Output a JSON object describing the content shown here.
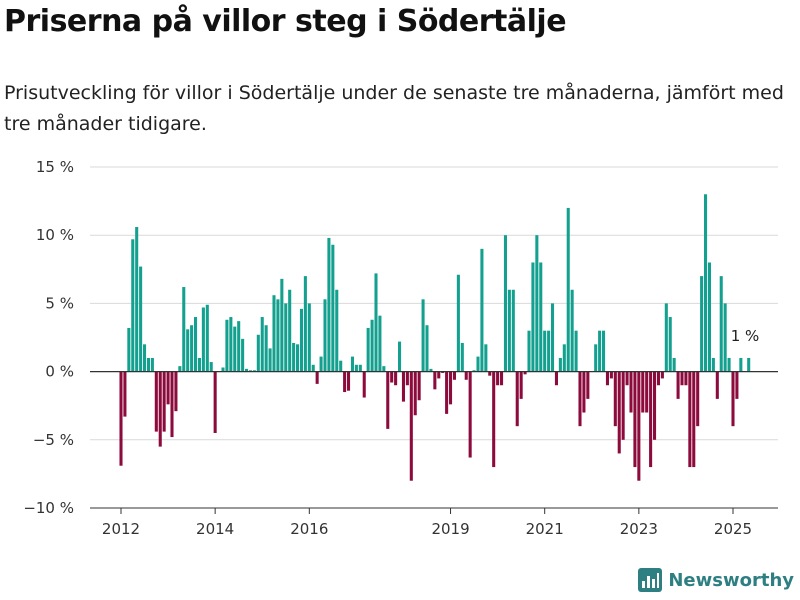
{
  "title": "Priserna på villor steg i Södertälje",
  "subtitle": "Prisutveckling för villor i Södertälje under de senaste tre månaderna, jämfört med tre månader tidigare.",
  "brand": {
    "name": "Newsworthy",
    "icon": "bar-chart-logo-icon"
  },
  "colors": {
    "positive": "#13a08f",
    "negative": "#8c0a3c",
    "grid": "#d9d9d9",
    "zero": "#333333",
    "brand": "#2e7f82"
  },
  "chart_data": {
    "type": "bar",
    "title": "Priserna på villor steg i Södertälje",
    "xlabel": "",
    "ylabel": "",
    "ylim": [
      -10,
      15
    ],
    "y_ticks": [
      {
        "value": -10,
        "label": "−10 %"
      },
      {
        "value": -5,
        "label": "−5 %"
      },
      {
        "value": 0,
        "label": "0 %"
      },
      {
        "value": 5,
        "label": "5 %"
      },
      {
        "value": 10,
        "label": "10 %"
      },
      {
        "value": 15,
        "label": "15 %"
      }
    ],
    "x_ticks": [
      {
        "value": 2012.0,
        "label": "2012"
      },
      {
        "value": 2014.0,
        "label": "2014"
      },
      {
        "value": 2016.0,
        "label": "2016"
      },
      {
        "value": 2019.0,
        "label": "2019"
      },
      {
        "value": 2021.0,
        "label": "2021"
      },
      {
        "value": 2023.0,
        "label": "2023"
      },
      {
        "value": 2025.0,
        "label": "2025"
      }
    ],
    "grid": true,
    "last_value_label": "1 %",
    "bar_interval": "monthly",
    "start_month": "2012-01",
    "values": [
      -6.9,
      -3.3,
      3.2,
      9.7,
      10.6,
      7.7,
      2.0,
      1.0,
      1.0,
      -4.4,
      -5.5,
      -4.4,
      -2.4,
      -4.8,
      -2.9,
      0.4,
      6.2,
      3.1,
      3.4,
      4.0,
      1.0,
      4.7,
      4.9,
      0.7,
      -4.5,
      0.0,
      0.3,
      3.8,
      4.0,
      3.3,
      3.7,
      2.4,
      0.2,
      0.1,
      0.1,
      2.7,
      4.0,
      3.4,
      1.7,
      5.6,
      5.3,
      6.8,
      5.0,
      6.0,
      2.1,
      2.0,
      4.6,
      7.0,
      5.0,
      0.5,
      -0.9,
      1.1,
      5.3,
      9.8,
      9.3,
      6.0,
      0.8,
      -1.5,
      -1.4,
      1.1,
      0.5,
      0.5,
      -1.9,
      3.2,
      3.8,
      7.2,
      4.1,
      0.4,
      -4.2,
      -0.8,
      -1.0,
      2.2,
      -2.2,
      -1.0,
      -8.0,
      -3.2,
      -2.1,
      5.3,
      3.4,
      0.2,
      -1.3,
      -0.5,
      -0.1,
      -3.1,
      -2.4,
      -0.6,
      7.1,
      2.1,
      -0.6,
      -6.3,
      0.1,
      1.1,
      9.0,
      2.0,
      -0.3,
      -7.0,
      -1.0,
      -1.0,
      10.0,
      6.0,
      6.0,
      -4.0,
      -2.0,
      -0.2,
      3.0,
      8.0,
      10.0,
      8.0,
      3.0,
      3.0,
      5.0,
      -1.0,
      1.0,
      2.0,
      12.0,
      6.0,
      3.0,
      -4.0,
      -3.0,
      -2.0,
      0.0,
      2.0,
      3.0,
      3.0,
      -1.0,
      -0.5,
      -4.0,
      -6.0,
      -5.0,
      -1.0,
      -3.0,
      -7.0,
      -8.0,
      -3.0,
      -3.0,
      -7.0,
      -5.0,
      -1.0,
      -0.5,
      5.0,
      4.0,
      1.0,
      -2.0,
      -1.0,
      -1.0,
      -7.0,
      -7.0,
      -4.0,
      7.0,
      13.0,
      8.0,
      1.0,
      -2.0,
      7.0,
      5.0,
      1.0,
      -4.0,
      -2.0,
      1.0,
      0.0,
      1.0
    ]
  }
}
